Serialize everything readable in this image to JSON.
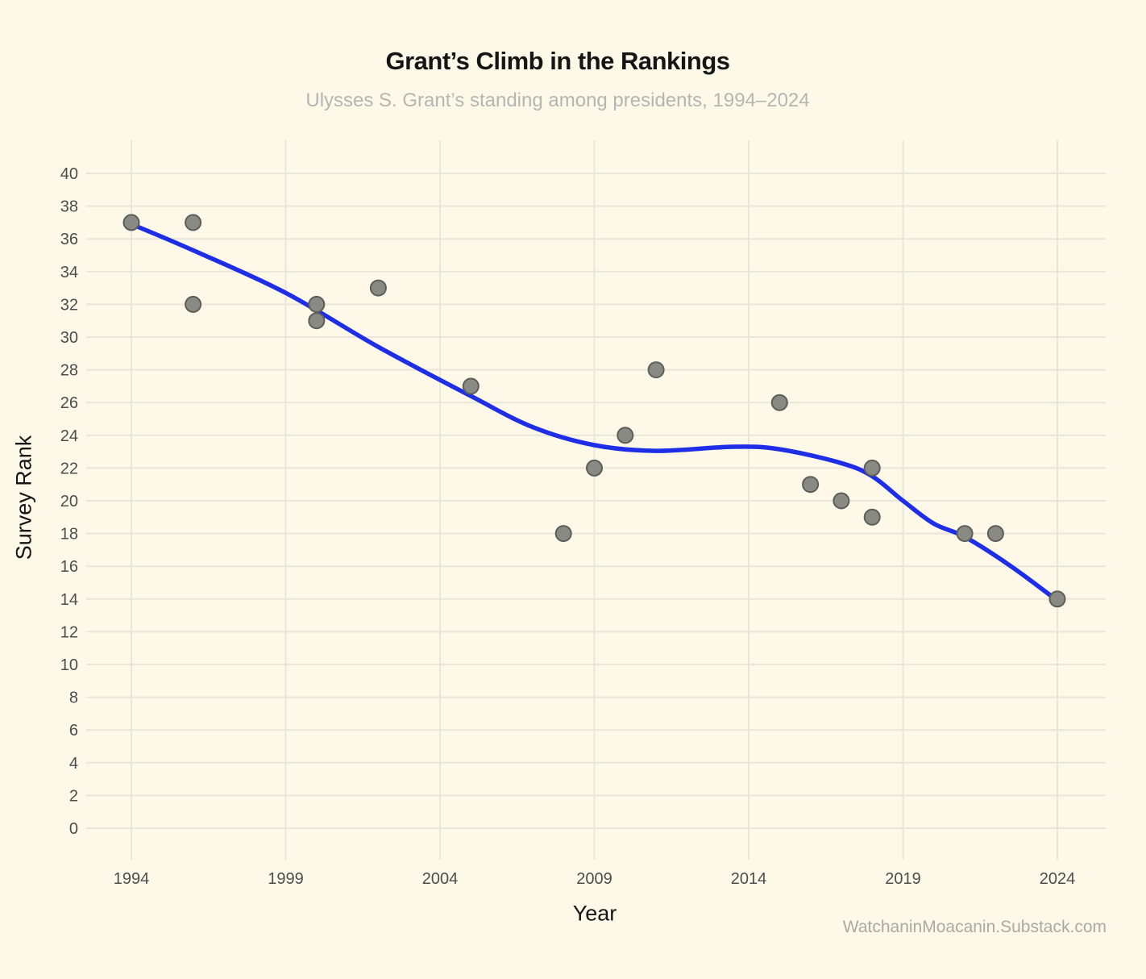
{
  "chart_data": {
    "type": "scatter",
    "title": "Grant’s Climb in the Rankings",
    "subtitle": "Ulysses S. Grant’s standing among presidents, 1994–2024",
    "xlabel": "Year",
    "ylabel": "Survey Rank",
    "watermark": "WatchaninMoacanin.Substack.com",
    "grid": true,
    "legend": "none",
    "xlim": [
      1992.5,
      2025.6
    ],
    "ylim": [
      0,
      42
    ],
    "x_ticks": [
      1994,
      1999,
      2004,
      2009,
      2014,
      2019,
      2024
    ],
    "y_ticks": [
      0,
      2,
      4,
      6,
      8,
      10,
      12,
      14,
      16,
      18,
      20,
      22,
      24,
      26,
      28,
      30,
      32,
      34,
      36,
      38,
      40
    ],
    "points": [
      [
        1994,
        37
      ],
      [
        1996,
        37
      ],
      [
        1996,
        32
      ],
      [
        2000,
        32
      ],
      [
        2000,
        31
      ],
      [
        2002,
        33
      ],
      [
        2005,
        27
      ],
      [
        2008,
        18
      ],
      [
        2009,
        22
      ],
      [
        2010,
        24
      ],
      [
        2011,
        28
      ],
      [
        2015,
        26
      ],
      [
        2016,
        21
      ],
      [
        2017,
        20
      ],
      [
        2018,
        22
      ],
      [
        2018,
        19
      ],
      [
        2021,
        18
      ],
      [
        2022,
        18
      ],
      [
        2024,
        14
      ]
    ],
    "trend_line": [
      [
        1994,
        36.9
      ],
      [
        1996,
        35.3
      ],
      [
        1999,
        32.7
      ],
      [
        2002,
        29.4
      ],
      [
        2005,
        26.4
      ],
      [
        2007,
        24.5
      ],
      [
        2009,
        23.4
      ],
      [
        2011,
        23.05
      ],
      [
        2013.5,
        23.3
      ],
      [
        2015,
        23.15
      ],
      [
        2017,
        22.3
      ],
      [
        2018,
        21.5
      ],
      [
        2019,
        20.0
      ],
      [
        2020,
        18.6
      ],
      [
        2021,
        17.8
      ],
      [
        2022.5,
        16.0
      ],
      [
        2024,
        13.9
      ]
    ],
    "colors": {
      "background": "#FDF8E8",
      "grid": "#E8E5DB",
      "trend": "#1E2EE6",
      "point_fill": "#8A8A84",
      "point_stroke": "#5E5E59",
      "tick_label": "#4D4D4D",
      "title": "#151515",
      "subtitle": "#B5B5B3",
      "watermark": "#ACA9A0"
    }
  }
}
